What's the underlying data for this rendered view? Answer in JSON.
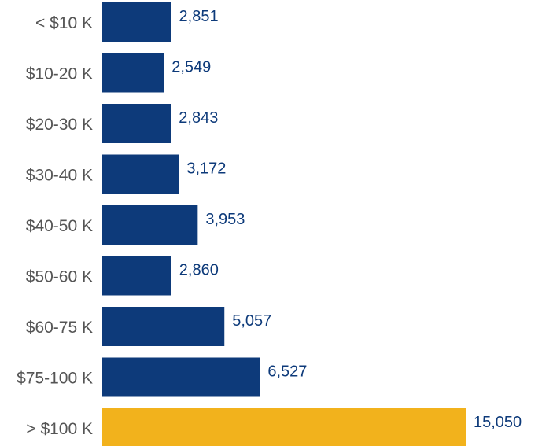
{
  "chart_data": {
    "type": "bar",
    "orientation": "horizontal",
    "categories": [
      "< $10 K",
      "$10-20 K",
      "$20-30 K",
      "$30-40 K",
      "$40-50 K",
      "$50-60 K",
      "$60-75 K",
      "$75-100 K",
      "> $100 K"
    ],
    "values": [
      2851,
      2549,
      2843,
      3172,
      3953,
      2860,
      5057,
      6527,
      15050
    ],
    "value_labels": [
      "2,851",
      "2,549",
      "2,843",
      "3,172",
      "3,953",
      "2,860",
      "5,057",
      "6,527",
      "15,050"
    ],
    "highlight_index": 8,
    "grid": false,
    "legend": "none"
  },
  "colors": {
    "bar": "#0d3a7a",
    "highlight": "#f2b21c",
    "value_text": "#0d3a7a",
    "category_text": "#555555"
  }
}
